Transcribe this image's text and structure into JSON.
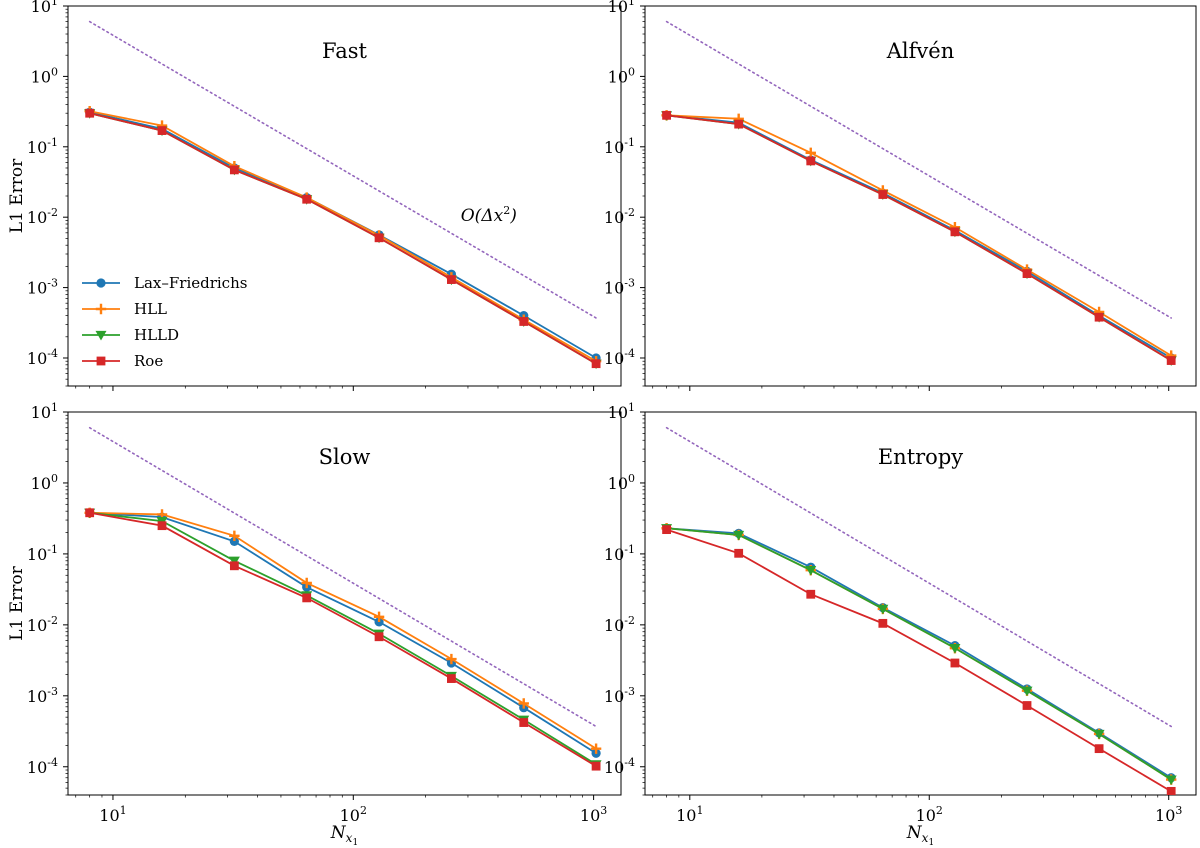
{
  "figure": {
    "x_axis_label": "N",
    "x_axis_label_sub": "x",
    "x_axis_label_subsub": "1",
    "y_axis_label": "L1 Error"
  },
  "legend": [
    {
      "name": "Lax–Friedrichs",
      "color": "#1f77b4",
      "marker": "circle"
    },
    {
      "name": "HLL",
      "color": "#ff7f0e",
      "marker": "plus"
    },
    {
      "name": "HLLD",
      "color": "#2ca02c",
      "marker": "triangle-down"
    },
    {
      "name": "Roe",
      "color": "#d62728",
      "marker": "square"
    }
  ],
  "reference_line": {
    "label": "O(Δx²)",
    "color": "#9467bd",
    "style": "dotted",
    "x": [
      8,
      1024
    ],
    "y": [
      6.0,
      0.00037
    ]
  },
  "chart_data": [
    {
      "type": "line",
      "title": "Fast",
      "xscale": "log",
      "yscale": "log",
      "xlim": [
        6.5,
        1300
      ],
      "ylim": [
        4e-05,
        10
      ],
      "x": [
        8,
        16,
        32,
        64,
        128,
        256,
        512,
        1024
      ],
      "series": [
        {
          "name": "Lax–Friedrichs",
          "values": [
            0.31,
            0.18,
            0.05,
            0.019,
            0.0056,
            0.00155,
            0.0004,
            0.0001
          ]
        },
        {
          "name": "HLL",
          "values": [
            0.32,
            0.2,
            0.053,
            0.019,
            0.0055,
            0.0014,
            0.00035,
            9e-05
          ]
        },
        {
          "name": "HLLD",
          "values": [
            0.3,
            0.17,
            0.047,
            0.018,
            0.0051,
            0.0013,
            0.00033,
            8.3e-05
          ]
        },
        {
          "name": "Roe",
          "values": [
            0.3,
            0.17,
            0.047,
            0.018,
            0.0051,
            0.0013,
            0.00033,
            8.3e-05
          ]
        }
      ],
      "annotation": "O(Δx²)",
      "legend_loc": "lower-left",
      "show_x_ticklabels": false
    },
    {
      "type": "line",
      "title": "Alfvén",
      "xscale": "log",
      "yscale": "log",
      "xlim": [
        6.5,
        1300
      ],
      "ylim": [
        4e-05,
        10
      ],
      "x": [
        8,
        16,
        32,
        64,
        128,
        256,
        512,
        1024
      ],
      "series": [
        {
          "name": "Lax–Friedrichs",
          "values": [
            0.28,
            0.22,
            0.065,
            0.022,
            0.0065,
            0.0017,
            0.0004,
            0.0001
          ]
        },
        {
          "name": "HLL",
          "values": [
            0.28,
            0.25,
            0.082,
            0.024,
            0.0072,
            0.0018,
            0.00045,
            0.000108
          ]
        },
        {
          "name": "HLLD",
          "values": [
            0.28,
            0.21,
            0.063,
            0.021,
            0.0062,
            0.00158,
            0.00038,
            9.2e-05
          ]
        },
        {
          "name": "Roe",
          "values": [
            0.28,
            0.21,
            0.063,
            0.021,
            0.0062,
            0.00158,
            0.00038,
            9.2e-05
          ]
        }
      ],
      "show_x_ticklabels": false
    },
    {
      "type": "line",
      "title": "Slow",
      "xscale": "log",
      "yscale": "log",
      "xlim": [
        6.5,
        1300
      ],
      "ylim": [
        4e-05,
        10
      ],
      "x": [
        8,
        16,
        32,
        64,
        128,
        256,
        512,
        1024
      ],
      "series": [
        {
          "name": "Lax–Friedrichs",
          "values": [
            0.38,
            0.33,
            0.15,
            0.034,
            0.011,
            0.0029,
            0.00068,
            0.000155
          ]
        },
        {
          "name": "HLL",
          "values": [
            0.38,
            0.36,
            0.18,
            0.039,
            0.013,
            0.0033,
            0.00078,
            0.00018
          ]
        },
        {
          "name": "HLLD",
          "values": [
            0.38,
            0.29,
            0.08,
            0.026,
            0.0075,
            0.0019,
            0.00046,
            0.000108
          ]
        },
        {
          "name": "Roe",
          "values": [
            0.38,
            0.25,
            0.068,
            0.024,
            0.0068,
            0.00175,
            0.00042,
            0.000102
          ]
        }
      ],
      "show_x_ticklabels": true
    },
    {
      "type": "line",
      "title": "Entropy",
      "xscale": "log",
      "yscale": "log",
      "xlim": [
        6.5,
        1300
      ],
      "ylim": [
        4e-05,
        10
      ],
      "x": [
        8,
        16,
        32,
        64,
        128,
        256,
        512,
        1024
      ],
      "series": [
        {
          "name": "Lax–Friedrichs",
          "values": [
            0.23,
            0.195,
            0.065,
            0.0175,
            0.0051,
            0.00125,
            0.0003,
            7e-05
          ]
        },
        {
          "name": "HLL",
          "values": [
            0.23,
            0.185,
            0.059,
            0.0168,
            0.0047,
            0.00118,
            0.00029,
            6.6e-05
          ]
        },
        {
          "name": "HLLD",
          "values": [
            0.23,
            0.185,
            0.059,
            0.0168,
            0.0047,
            0.00118,
            0.00029,
            6.6e-05
          ]
        },
        {
          "name": "Roe",
          "values": [
            0.22,
            0.102,
            0.027,
            0.0105,
            0.0029,
            0.00073,
            0.00018,
            4.5e-05
          ]
        }
      ],
      "show_x_ticklabels": true
    }
  ]
}
